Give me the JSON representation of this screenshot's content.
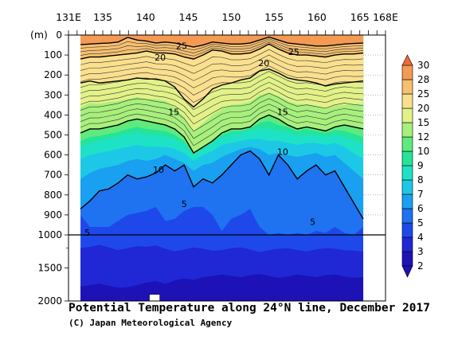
{
  "chart_data": {
    "type": "contour",
    "title": "Potential Temperature along 24°N line, December 2017",
    "credit": "(C) Japan Meteorological Agency",
    "x_axis": {
      "range": [
        131,
        168
      ],
      "tick_labels": [
        {
          "value": 131,
          "label": "131E"
        },
        {
          "value": 135,
          "label": "135"
        },
        {
          "value": 140,
          "label": "140"
        },
        {
          "value": 145,
          "label": "145"
        },
        {
          "value": 150,
          "label": "150"
        },
        {
          "value": 155,
          "label": "155"
        },
        {
          "value": 160,
          "label": "160"
        },
        {
          "value": 165,
          "label": "165"
        },
        {
          "value": 168,
          "label": "168E"
        }
      ]
    },
    "y_axis": {
      "unit_label": "(m)",
      "upper_ticks": [
        0,
        100,
        200,
        300,
        400,
        500,
        600,
        700,
        800,
        900,
        1000
      ],
      "lower_ticks": [
        1500,
        2000
      ],
      "break_depth": 1000,
      "max_depth": 2000
    },
    "data_extent": {
      "lon_min": 132.4,
      "lon_max": 165.4
    },
    "contour_levels": [
      2,
      3,
      4,
      5,
      6,
      7,
      8,
      9,
      10,
      12,
      15,
      20,
      25,
      28,
      30
    ],
    "colorbar_labels": [
      "30",
      "28",
      "25",
      "20",
      "15",
      "12",
      "10",
      "9",
      "8",
      "7",
      "6",
      "5",
      "4",
      "3",
      "2"
    ],
    "colors": {
      "2": "#1c12b6",
      "3": "#1f28d4",
      "4": "#1f48ea",
      "5": "#1f72f0",
      "6": "#19a0f0",
      "7": "#1cc8e6",
      "8": "#1ee2c6",
      "9": "#25e49a",
      "10": "#5fea7c",
      "12": "#a8f07c",
      "15": "#e2f288",
      "20": "#fae08e",
      "25": "#f6c070",
      "28": "#f49a52",
      "30": "#ef6a3c"
    },
    "isotherms": [
      {
        "level": 5,
        "depths": [
          870,
          830,
          780,
          770,
          740,
          700,
          720,
          710,
          690,
          650,
          680,
          650,
          760,
          720,
          740,
          700,
          650,
          600,
          580,
          620,
          700,
          600,
          650,
          720,
          680,
          650,
          700,
          680,
          760,
          840,
          920
        ]
      },
      {
        "level": 10,
        "depths": [
          490,
          470,
          470,
          460,
          450,
          430,
          420,
          430,
          440,
          450,
          470,
          510,
          590,
          560,
          530,
          490,
          470,
          470,
          460,
          420,
          400,
          420,
          450,
          470,
          460,
          470,
          480,
          460,
          450,
          460,
          470
        ]
      },
      {
        "level": 15,
        "depths": [
          240,
          230,
          240,
          235,
          230,
          225,
          215,
          220,
          220,
          230,
          260,
          320,
          360,
          320,
          270,
          250,
          240,
          225,
          215,
          180,
          170,
          190,
          215,
          225,
          230,
          240,
          255,
          245,
          240,
          235,
          230
        ]
      },
      {
        "level": 20,
        "depths": [
          120,
          110,
          110,
          105,
          100,
          95,
          90,
          80,
          90,
          90,
          95,
          110,
          120,
          100,
          75,
          80,
          95,
          95,
          90,
          70,
          45,
          70,
          90,
          100,
          100,
          105,
          110,
          100,
          95,
          95,
          90
        ]
      },
      {
        "level": 25,
        "depths": [
          48,
          45,
          42,
          40,
          35,
          12,
          25,
          30,
          40,
          35,
          40,
          50,
          60,
          50,
          35,
          40,
          45,
          45,
          40,
          25,
          10,
          25,
          40,
          45,
          50,
          55,
          55,
          50,
          45,
          42,
          40
        ]
      }
    ],
    "contour_labels": [
      {
        "level": 25,
        "lon": 144.2,
        "depth": 70
      },
      {
        "level": 20,
        "lon": 141.7,
        "depth": 128
      },
      {
        "level": 25,
        "lon": 157.3,
        "depth": 100
      },
      {
        "level": 20,
        "lon": 153.8,
        "depth": 155
      },
      {
        "level": 15,
        "lon": 143.3,
        "depth": 400
      },
      {
        "level": 15,
        "lon": 156.0,
        "depth": 400
      },
      {
        "level": 10,
        "lon": 141.5,
        "depth": 690
      },
      {
        "level": 10,
        "lon": 156.0,
        "depth": 600
      },
      {
        "level": 5,
        "lon": 144.5,
        "depth": 860
      },
      {
        "level": 5,
        "lon": 159.5,
        "depth": 950
      },
      {
        "level": 5,
        "lon": 133.2,
        "depth": 1010
      }
    ],
    "legend": "right-colorbar",
    "grid": false
  }
}
